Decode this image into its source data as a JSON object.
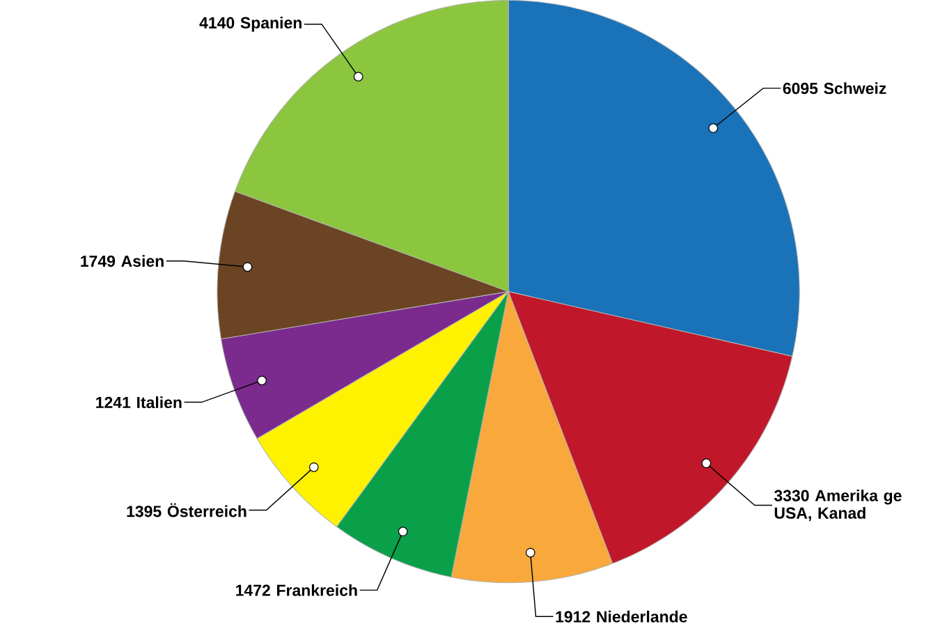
{
  "chart_data": {
    "type": "pie",
    "categories": [
      "Schweiz",
      "Amerika ge USA, Kanad",
      "Niederlande",
      "Frankreich",
      "Österreich",
      "Italien",
      "Asien",
      "Spanien"
    ],
    "values": [
      6095,
      3330,
      1912,
      1472,
      1395,
      1241,
      1749,
      4140
    ],
    "colors": [
      "#1a72b8",
      "#c0182a",
      "#f9a83c",
      "#0aa04a",
      "#fff200",
      "#7b2a8e",
      "#6b4423",
      "#8cc63f"
    ],
    "data_labels": true
  }
}
